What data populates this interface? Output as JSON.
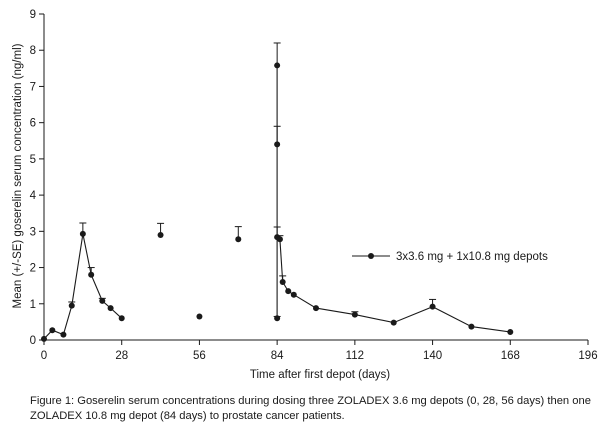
{
  "chart_data": {
    "type": "line",
    "xlabel": "Time after first depot (days)",
    "ylabel": "Mean (+/-SE) goserelin serum concentration (ng/ml)",
    "xlim": [
      0,
      196
    ],
    "ylim": [
      0,
      9
    ],
    "xticks": [
      "0",
      "28",
      "56",
      "84",
      "112",
      "140",
      "168",
      "196"
    ],
    "xtick_values": [
      0,
      28,
      56,
      84,
      112,
      140,
      168,
      196
    ],
    "yticks": [
      "0",
      "1",
      "2",
      "3",
      "4",
      "5",
      "6",
      "7",
      "8",
      "9"
    ],
    "ytick_values": [
      0,
      1,
      2,
      3,
      4,
      5,
      6,
      7,
      8,
      9
    ],
    "legend_position": "right, mid-height",
    "series": [
      {
        "name": "3x3.6 mg + 1x10.8 mg depots",
        "color": "#1a1a1a",
        "segments": [
          [
            {
              "x": 0,
              "y": 0.03
            },
            {
              "x": 3,
              "y": 0.27
            },
            {
              "x": 7,
              "y": 0.15
            },
            {
              "x": 10,
              "y": 0.95,
              "err": 0.1
            },
            {
              "x": 14,
              "y": 2.93,
              "err": 0.3
            },
            {
              "x": 17,
              "y": 1.8,
              "err": 0.2
            },
            {
              "x": 21,
              "y": 1.08,
              "err": 0.07
            },
            {
              "x": 24,
              "y": 0.88
            },
            {
              "x": 28,
              "y": 0.6
            }
          ],
          [
            {
              "x": 42,
              "y": 2.9,
              "err": 0.32
            }
          ],
          [
            {
              "x": 56,
              "y": 0.65
            }
          ],
          [
            {
              "x": 70,
              "y": 2.78,
              "err": 0.35
            }
          ],
          [
            {
              "x": 84,
              "y": 0.6,
              "err": 0.05
            },
            {
              "x": 84,
              "y": 7.58,
              "err": 0.62
            },
            {
              "x": 84,
              "y": 5.4,
              "err": 0.5
            },
            {
              "x": 84,
              "y": 2.84,
              "err": 0.28
            },
            {
              "x": 85,
              "y": 2.78,
              "err": 0.1
            },
            {
              "x": 86,
              "y": 1.6,
              "err": 0.17
            },
            {
              "x": 88,
              "y": 1.35
            },
            {
              "x": 90,
              "y": 1.25
            },
            {
              "x": 98,
              "y": 0.88
            },
            {
              "x": 112,
              "y": 0.7,
              "err": 0.08
            },
            {
              "x": 126,
              "y": 0.48
            },
            {
              "x": 140,
              "y": 0.92,
              "err": 0.2
            },
            {
              "x": 154,
              "y": 0.37
            },
            {
              "x": 168,
              "y": 0.22
            }
          ]
        ]
      }
    ]
  },
  "caption": "Figure 1: Goserelin serum concentrations during dosing three ZOLADEX 3.6 mg depots (0, 28, 56 days) then one ZOLADEX 10.8 mg depot (84 days) to prostate cancer patients."
}
